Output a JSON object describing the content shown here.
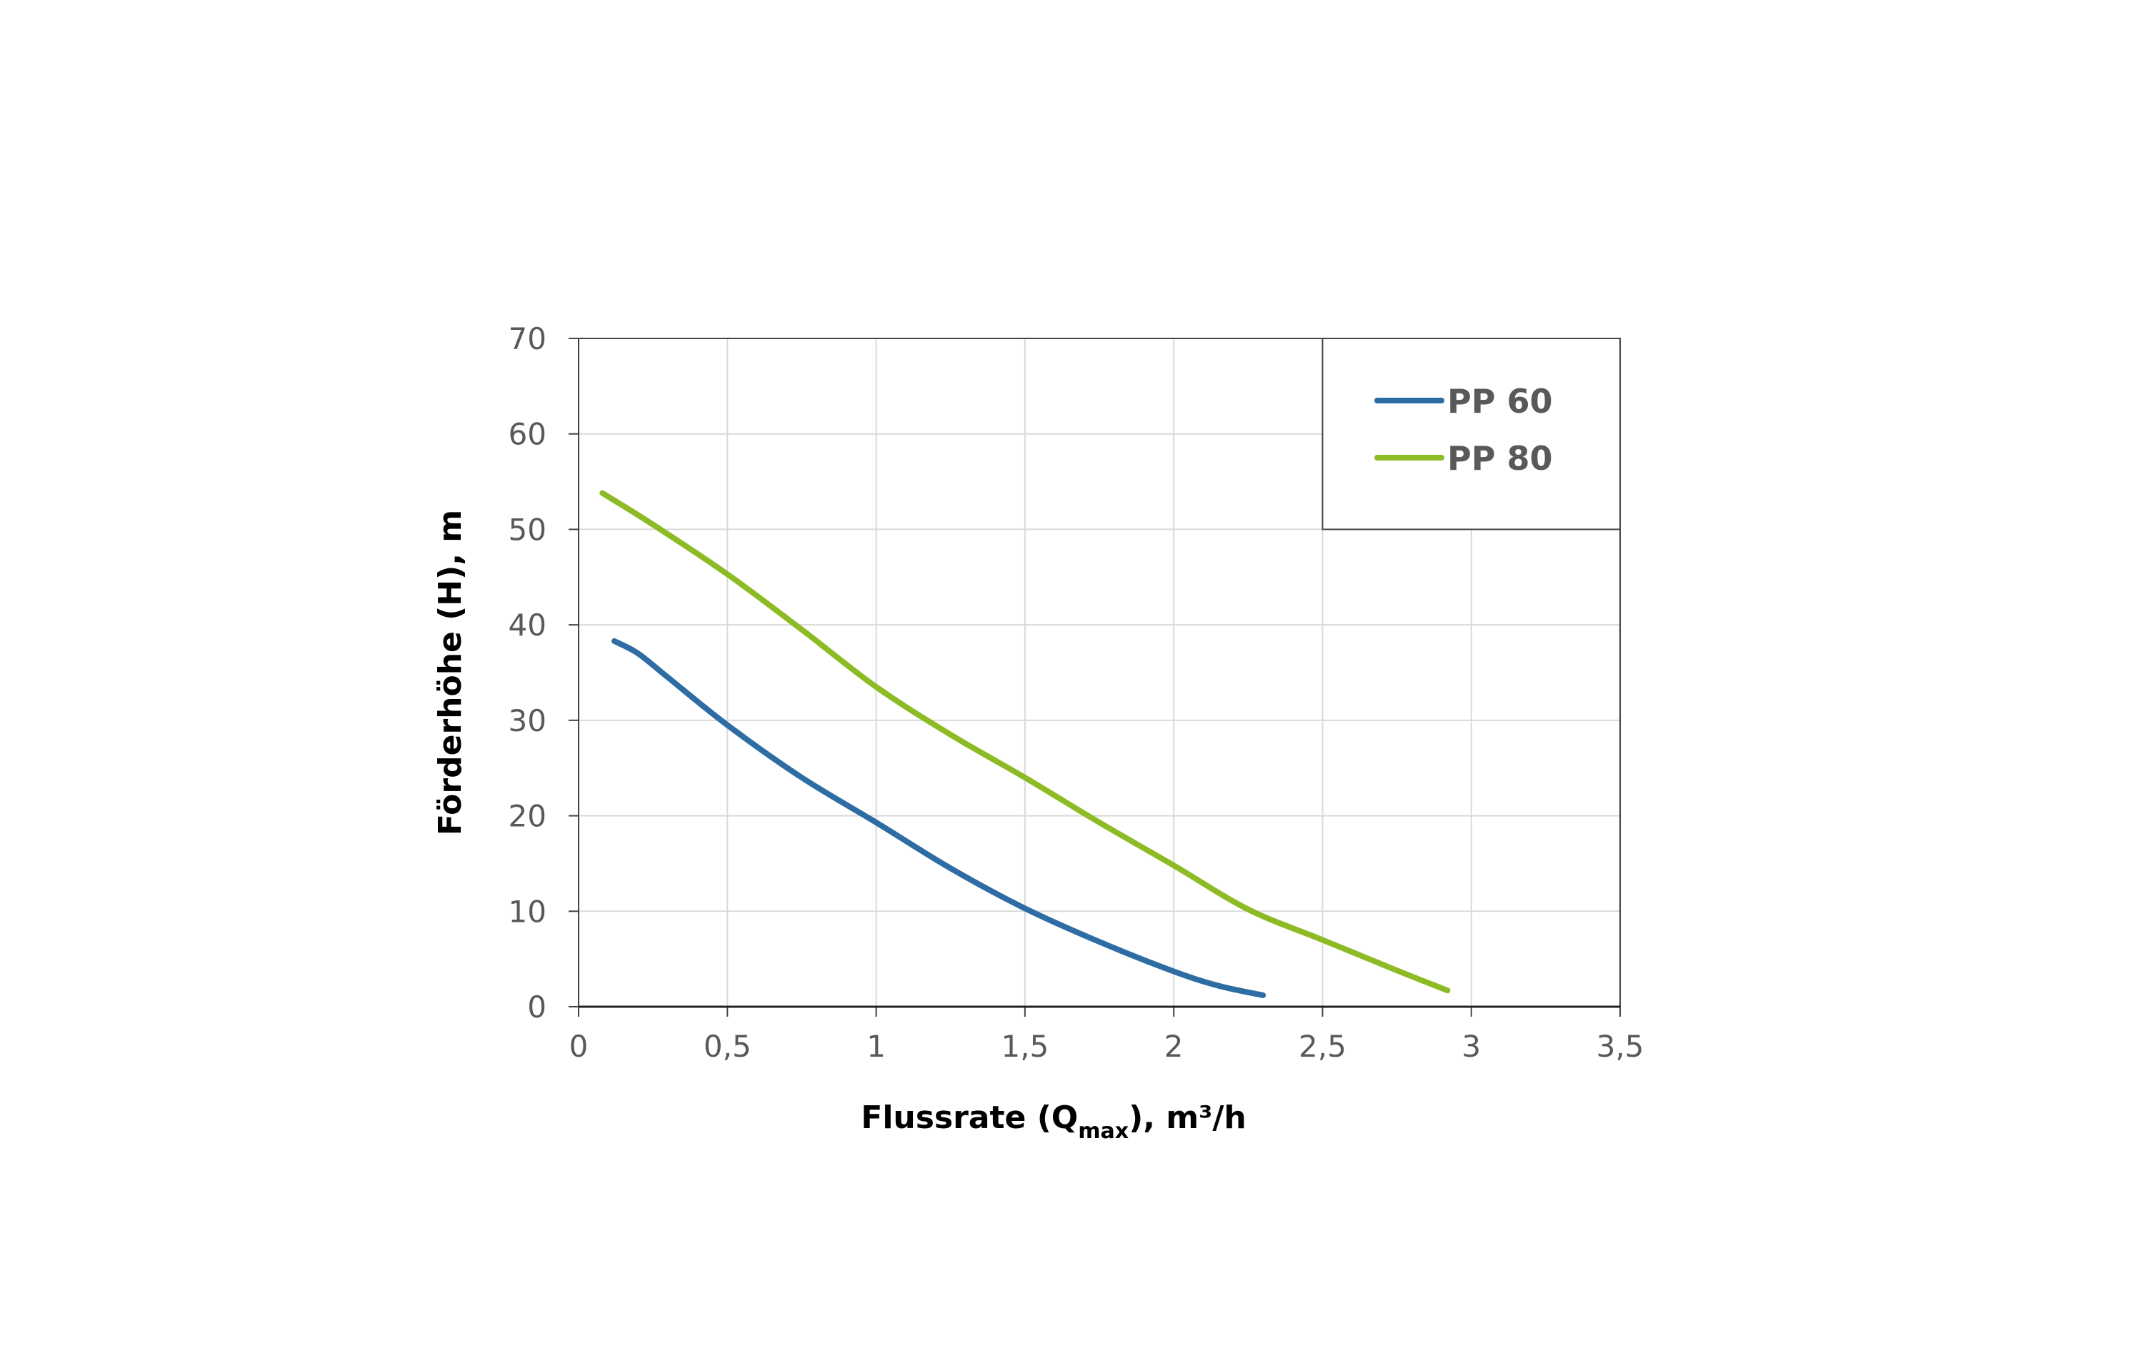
{
  "chart_data": {
    "type": "line",
    "title": "",
    "xlabel": "Flussrate (Q",
    "xlabel_sub": "max",
    "xlabel_suffix": "), m³/h",
    "ylabel": "Förderhöhe (H), m",
    "xlim": [
      0,
      3.5
    ],
    "ylim": [
      0,
      70
    ],
    "xticks": [
      0,
      0.5,
      1,
      1.5,
      2,
      2.5,
      3,
      3.5
    ],
    "xtick_labels": [
      "0",
      "0,5",
      "1",
      "1,5",
      "2",
      "2,5",
      "3",
      "3,5"
    ],
    "yticks": [
      0,
      10,
      20,
      30,
      40,
      50,
      60,
      70
    ],
    "ytick_labels": [
      "0",
      "10",
      "20",
      "30",
      "40",
      "50",
      "60",
      "70"
    ],
    "grid": true,
    "legend_position": "top-right",
    "series": [
      {
        "name": "PP 60",
        "color": "#2e6da4",
        "x": [
          0.12,
          0.2,
          0.3,
          0.5,
          0.75,
          1,
          1.25,
          1.5,
          1.75,
          2,
          2.15,
          2.3
        ],
        "y": [
          38.3,
          37,
          34.5,
          29.5,
          24,
          19.3,
          14.5,
          10.3,
          6.8,
          3.7,
          2.2,
          1.2
        ]
      },
      {
        "name": "PP 80",
        "color": "#8dbb25",
        "x": [
          0.08,
          0.25,
          0.5,
          0.75,
          1,
          1.25,
          1.5,
          1.75,
          2,
          2.25,
          2.5,
          2.75,
          2.92
        ],
        "y": [
          53.8,
          50.5,
          45.3,
          39.5,
          33.5,
          28.5,
          24,
          19.3,
          14.8,
          10.2,
          7,
          3.8,
          1.7
        ]
      }
    ]
  }
}
